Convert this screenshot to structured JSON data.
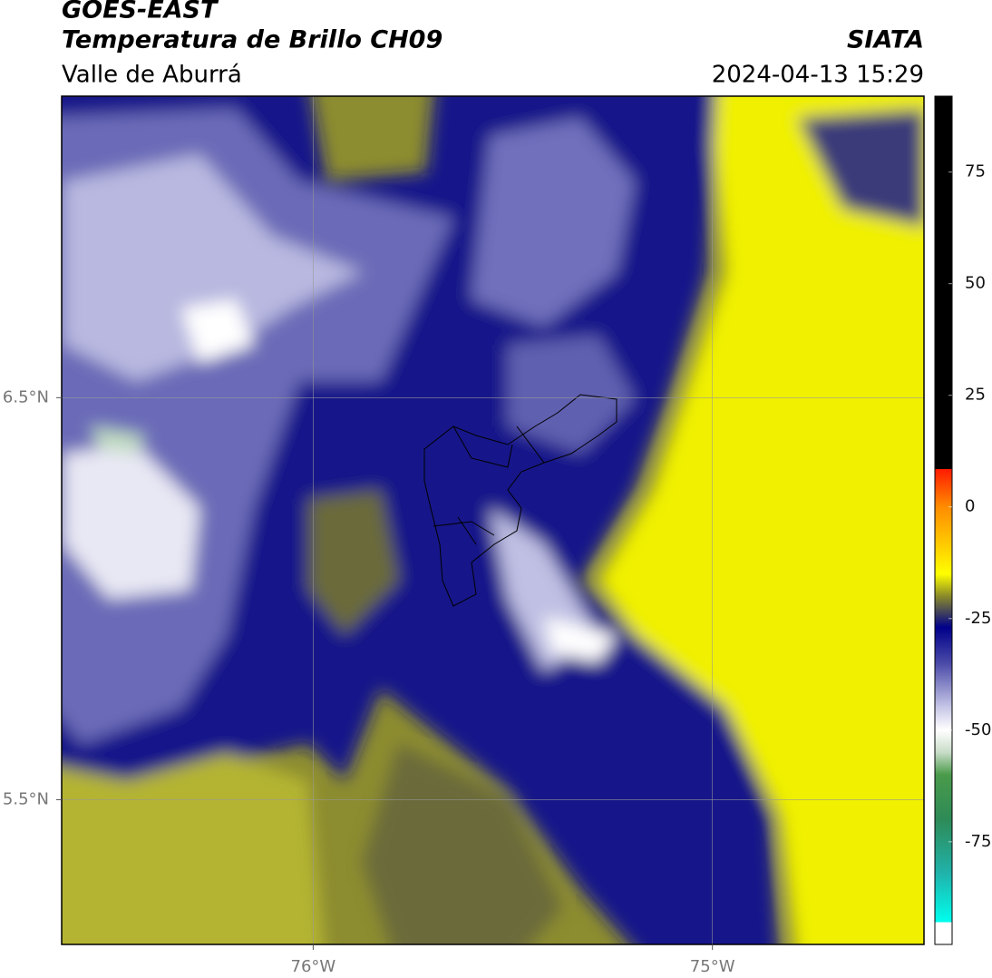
{
  "header": {
    "title": "GOES-EAST",
    "subtitle": "Temperatura de Brillo CH09",
    "region": "Valle de Aburrá",
    "source": "SIATA",
    "datetime": "2024-04-13 15:29"
  },
  "map": {
    "xlim": [
      -76.63,
      -74.47
    ],
    "ylim": [
      5.14,
      7.25
    ],
    "lon_ticks": [
      {
        "value": -76,
        "label": "76°W"
      },
      {
        "value": -75,
        "label": "75°W"
      }
    ],
    "lat_ticks": [
      {
        "value": 6.5,
        "label": "6.5°N"
      },
      {
        "value": 5.5,
        "label": "5.5°N"
      }
    ],
    "grid": true,
    "colorbar": {
      "lim": [
        -98,
        92
      ],
      "ticks": [
        75,
        50,
        25,
        0,
        -25,
        -50,
        -75
      ],
      "stops": [
        {
          "value": 92,
          "color": "#000000"
        },
        {
          "value": 8.5,
          "color": "#000000"
        },
        {
          "value": 8.5,
          "color": "#ff1a00"
        },
        {
          "value": 0,
          "color": "#ff8c00"
        },
        {
          "value": -10,
          "color": "#ffd700"
        },
        {
          "value": -15,
          "color": "#ffff00"
        },
        {
          "value": -20,
          "color": "#8a8a2a"
        },
        {
          "value": -27,
          "color": "#00008b"
        },
        {
          "value": -35,
          "color": "#4a4aa8"
        },
        {
          "value": -45,
          "color": "#c8c8e8"
        },
        {
          "value": -50,
          "color": "#ffffff"
        },
        {
          "value": -55,
          "color": "#c8dcc8"
        },
        {
          "value": -60,
          "color": "#4a9a4a"
        },
        {
          "value": -70,
          "color": "#2e8b57"
        },
        {
          "value": -82,
          "color": "#20b2aa"
        },
        {
          "value": -93,
          "color": "#00ffee"
        },
        {
          "value": -93,
          "color": "#ffffff"
        },
        {
          "value": -98,
          "color": "#ffffff"
        }
      ]
    }
  }
}
